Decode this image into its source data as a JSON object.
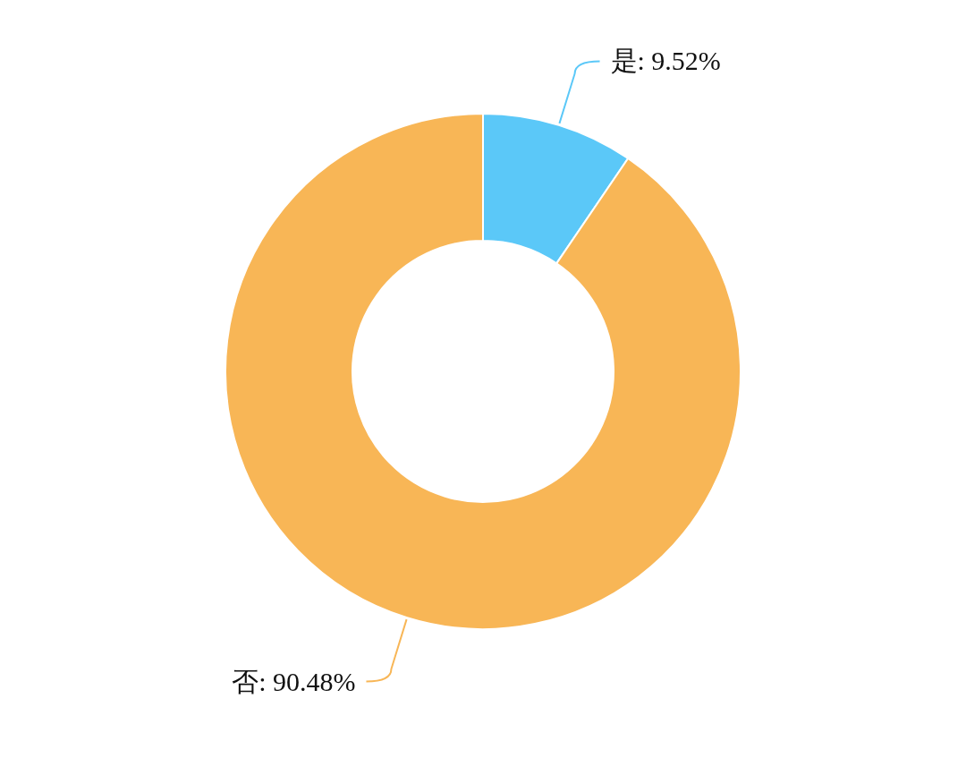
{
  "chart_data": {
    "type": "donut",
    "categories": [
      "是",
      "否"
    ],
    "values": [
      9.52,
      90.48
    ],
    "value_labels": [
      ": 9.52%",
      ": 90.48%"
    ],
    "colors": [
      "#5bc8f8",
      "#f8b656"
    ]
  }
}
